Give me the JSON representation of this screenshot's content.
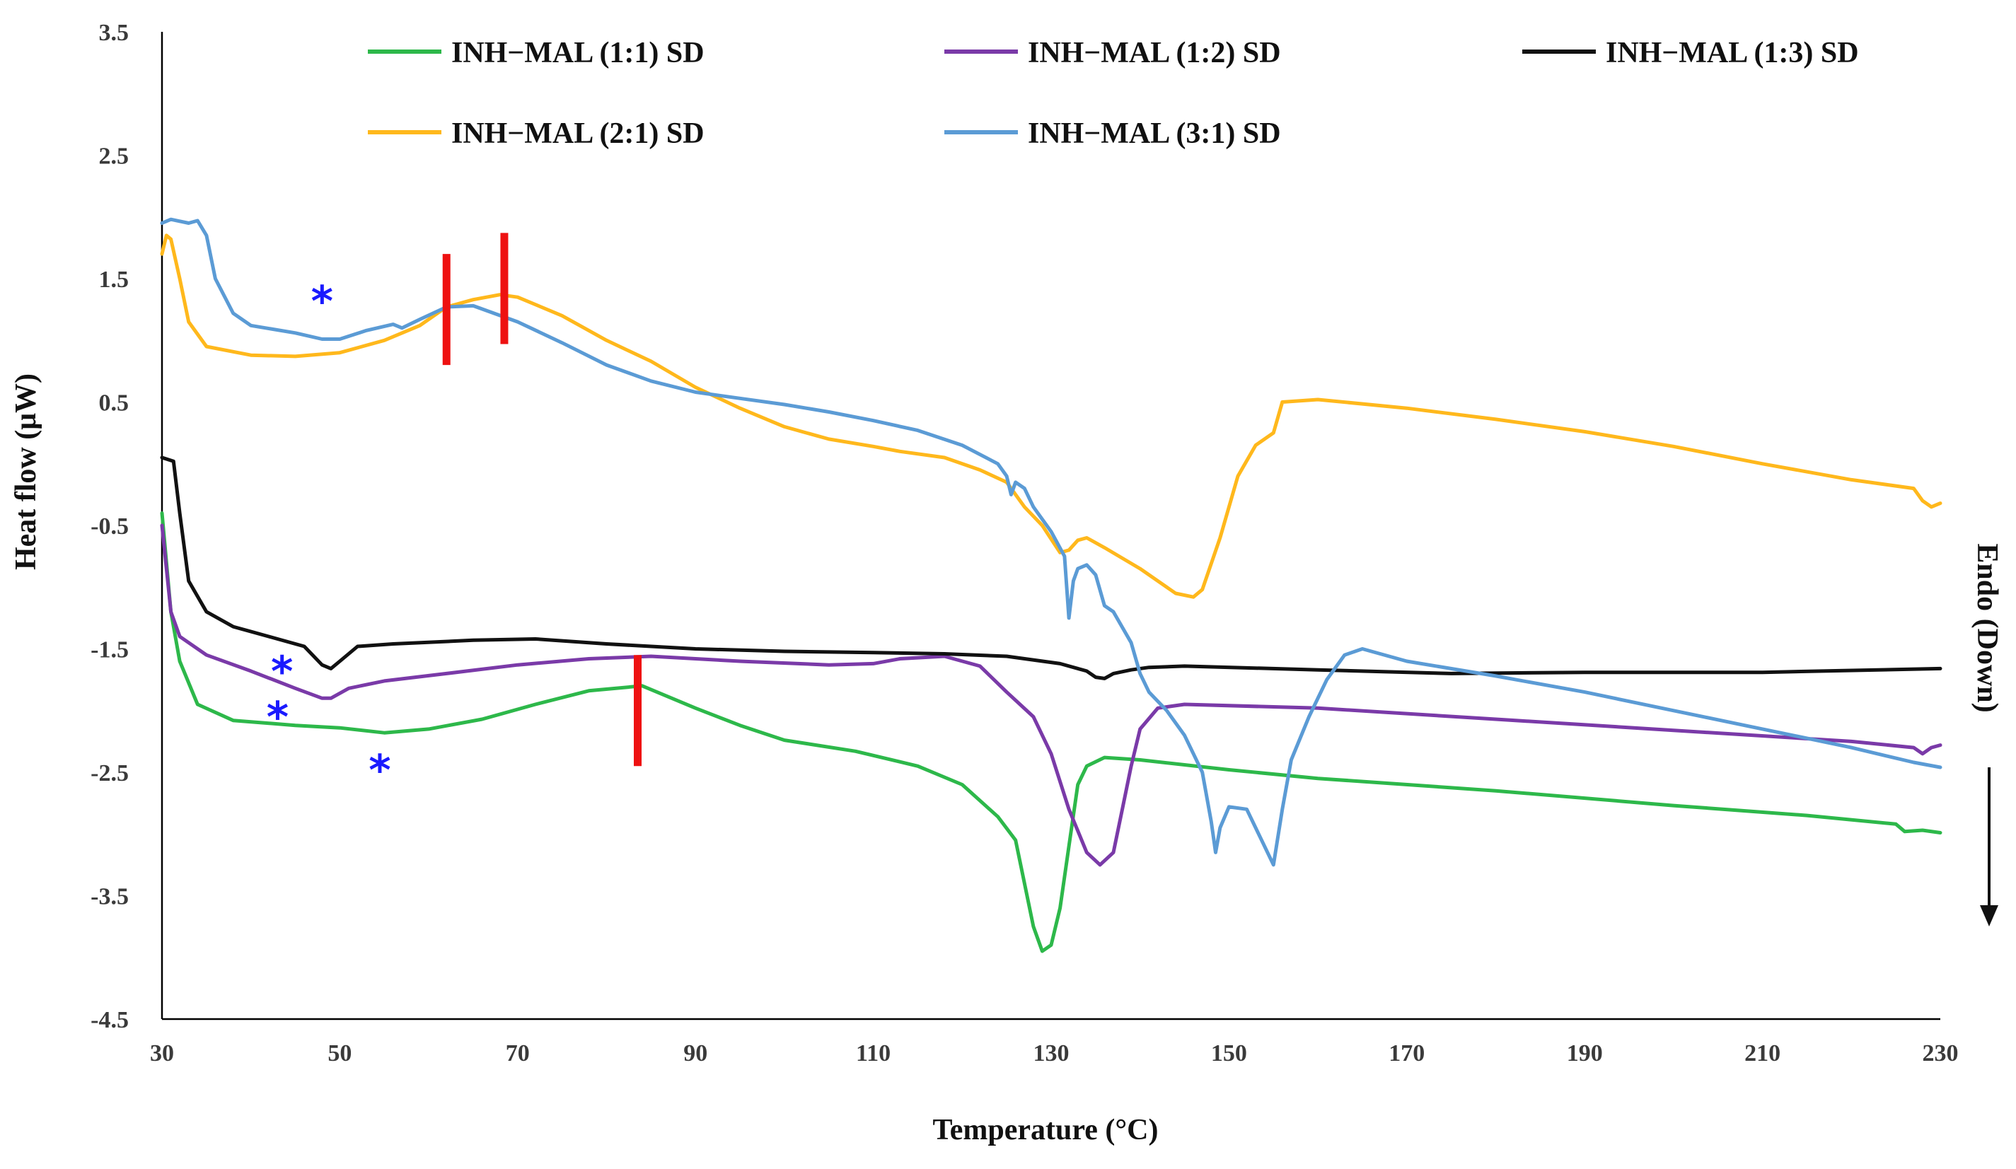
{
  "chart_data": {
    "type": "line",
    "title": "",
    "xlabel": "Temperature (°C)",
    "ylabel": "Heat flow (μW)",
    "right_label": "Endo (Down)",
    "xlim": [
      30,
      230
    ],
    "ylim": [
      -4.5,
      3.5
    ],
    "xticks": [
      30,
      50,
      70,
      90,
      110,
      130,
      150,
      170,
      190,
      210,
      230
    ],
    "yticks": [
      3.5,
      2.5,
      1.5,
      0.5,
      -0.5,
      -1.5,
      -2.5,
      -3.5,
      -4.5
    ],
    "ytick_labels": [
      "3.5",
      "2.5",
      "1.5",
      "0.5",
      "-0.5",
      "-1.5",
      "-2.5",
      "-3.5",
      "-4.5"
    ],
    "legend_position": "top",
    "series": [
      {
        "name": "INH−MAL (1:1) SD",
        "color": "#2db84a",
        "points": [
          [
            30,
            -0.4
          ],
          [
            31,
            -1.2
          ],
          [
            32,
            -1.6
          ],
          [
            34,
            -1.95
          ],
          [
            38,
            -2.08
          ],
          [
            45,
            -2.12
          ],
          [
            50,
            -2.14
          ],
          [
            55,
            -2.18
          ],
          [
            60,
            -2.15
          ],
          [
            66,
            -2.07
          ],
          [
            72,
            -1.95
          ],
          [
            78,
            -1.84
          ],
          [
            84,
            -1.8
          ],
          [
            90,
            -1.98
          ],
          [
            95,
            -2.12
          ],
          [
            100,
            -2.24
          ],
          [
            108,
            -2.33
          ],
          [
            115,
            -2.45
          ],
          [
            120,
            -2.6
          ],
          [
            124,
            -2.86
          ],
          [
            126,
            -3.05
          ],
          [
            127,
            -3.4
          ],
          [
            128,
            -3.75
          ],
          [
            129,
            -3.95
          ],
          [
            130,
            -3.9
          ],
          [
            131,
            -3.6
          ],
          [
            132,
            -3.1
          ],
          [
            133,
            -2.6
          ],
          [
            134,
            -2.45
          ],
          [
            136,
            -2.38
          ],
          [
            140,
            -2.4
          ],
          [
            150,
            -2.48
          ],
          [
            160,
            -2.55
          ],
          [
            180,
            -2.65
          ],
          [
            200,
            -2.77
          ],
          [
            215,
            -2.85
          ],
          [
            225,
            -2.92
          ],
          [
            226,
            -2.98
          ],
          [
            228,
            -2.97
          ],
          [
            230,
            -2.99
          ]
        ]
      },
      {
        "name": "INH−MAL (1:2) SD",
        "color": "#7a3aa8",
        "points": [
          [
            30,
            -0.5
          ],
          [
            31,
            -1.2
          ],
          [
            32,
            -1.4
          ],
          [
            35,
            -1.55
          ],
          [
            40,
            -1.68
          ],
          [
            45,
            -1.82
          ],
          [
            48,
            -1.9
          ],
          [
            49,
            -1.9
          ],
          [
            51,
            -1.82
          ],
          [
            55,
            -1.76
          ],
          [
            62,
            -1.7
          ],
          [
            70,
            -1.63
          ],
          [
            78,
            -1.58
          ],
          [
            85,
            -1.56
          ],
          [
            95,
            -1.6
          ],
          [
            105,
            -1.63
          ],
          [
            110,
            -1.62
          ],
          [
            113,
            -1.58
          ],
          [
            118,
            -1.56
          ],
          [
            122,
            -1.64
          ],
          [
            125,
            -1.85
          ],
          [
            128,
            -2.05
          ],
          [
            130,
            -2.35
          ],
          [
            132,
            -2.8
          ],
          [
            134,
            -3.15
          ],
          [
            135.5,
            -3.25
          ],
          [
            137,
            -3.15
          ],
          [
            138,
            -2.8
          ],
          [
            139,
            -2.45
          ],
          [
            140,
            -2.15
          ],
          [
            142,
            -1.98
          ],
          [
            145,
            -1.95
          ],
          [
            160,
            -1.98
          ],
          [
            180,
            -2.07
          ],
          [
            200,
            -2.16
          ],
          [
            220,
            -2.25
          ],
          [
            227,
            -2.3
          ],
          [
            228,
            -2.35
          ],
          [
            229,
            -2.3
          ],
          [
            230,
            -2.28
          ]
        ]
      },
      {
        "name": "INH−MAL (1:3) SD",
        "color": "#111111",
        "points": [
          [
            30,
            0.05
          ],
          [
            31.3,
            0.02
          ],
          [
            32,
            -0.4
          ],
          [
            33,
            -0.95
          ],
          [
            35,
            -1.2
          ],
          [
            38,
            -1.32
          ],
          [
            42,
            -1.4
          ],
          [
            46,
            -1.48
          ],
          [
            48,
            -1.63
          ],
          [
            49,
            -1.66
          ],
          [
            50,
            -1.6
          ],
          [
            52,
            -1.48
          ],
          [
            56,
            -1.46
          ],
          [
            65,
            -1.43
          ],
          [
            72,
            -1.42
          ],
          [
            80,
            -1.46
          ],
          [
            90,
            -1.5
          ],
          [
            100,
            -1.52
          ],
          [
            110,
            -1.53
          ],
          [
            118,
            -1.54
          ],
          [
            125,
            -1.56
          ],
          [
            131,
            -1.62
          ],
          [
            134,
            -1.68
          ],
          [
            135,
            -1.73
          ],
          [
            136,
            -1.74
          ],
          [
            137,
            -1.7
          ],
          [
            139,
            -1.67
          ],
          [
            141,
            -1.65
          ],
          [
            145,
            -1.64
          ],
          [
            160,
            -1.67
          ],
          [
            175,
            -1.7
          ],
          [
            190,
            -1.69
          ],
          [
            210,
            -1.69
          ],
          [
            230,
            -1.66
          ]
        ]
      },
      {
        "name": "INH−MAL (2:1) SD",
        "color": "#ffb81c",
        "points": [
          [
            30,
            1.7
          ],
          [
            30.5,
            1.85
          ],
          [
            31,
            1.82
          ],
          [
            32,
            1.5
          ],
          [
            33,
            1.15
          ],
          [
            35,
            0.95
          ],
          [
            40,
            0.88
          ],
          [
            45,
            0.87
          ],
          [
            50,
            0.9
          ],
          [
            55,
            1.0
          ],
          [
            59,
            1.12
          ],
          [
            62,
            1.27
          ],
          [
            65,
            1.33
          ],
          [
            68,
            1.37
          ],
          [
            70,
            1.35
          ],
          [
            75,
            1.2
          ],
          [
            80,
            1.0
          ],
          [
            85,
            0.83
          ],
          [
            90,
            0.62
          ],
          [
            95,
            0.45
          ],
          [
            100,
            0.3
          ],
          [
            105,
            0.2
          ],
          [
            110,
            0.14
          ],
          [
            113,
            0.1
          ],
          [
            118,
            0.05
          ],
          [
            122,
            -0.05
          ],
          [
            125,
            -0.15
          ],
          [
            127,
            -0.35
          ],
          [
            129,
            -0.5
          ],
          [
            131,
            -0.72
          ],
          [
            132,
            -0.7
          ],
          [
            133,
            -0.62
          ],
          [
            134,
            -0.6
          ],
          [
            136,
            -0.68
          ],
          [
            140,
            -0.85
          ],
          [
            144,
            -1.05
          ],
          [
            146,
            -1.08
          ],
          [
            147,
            -1.02
          ],
          [
            149,
            -0.6
          ],
          [
            151,
            -0.1
          ],
          [
            153,
            0.15
          ],
          [
            155,
            0.25
          ],
          [
            156,
            0.5
          ],
          [
            160,
            0.52
          ],
          [
            170,
            0.45
          ],
          [
            180,
            0.36
          ],
          [
            190,
            0.26
          ],
          [
            200,
            0.14
          ],
          [
            210,
            0.0
          ],
          [
            220,
            -0.13
          ],
          [
            227,
            -0.2
          ],
          [
            228,
            -0.3
          ],
          [
            229,
            -0.35
          ],
          [
            230,
            -0.32
          ]
        ]
      },
      {
        "name": "INH−MAL (3:1) SD",
        "color": "#5b9bd5",
        "points": [
          [
            30,
            1.95
          ],
          [
            31,
            1.98
          ],
          [
            33,
            1.95
          ],
          [
            34,
            1.97
          ],
          [
            35,
            1.85
          ],
          [
            36,
            1.5
          ],
          [
            38,
            1.22
          ],
          [
            40,
            1.12
          ],
          [
            45,
            1.06
          ],
          [
            48,
            1.01
          ],
          [
            50,
            1.01
          ],
          [
            53,
            1.08
          ],
          [
            56,
            1.13
          ],
          [
            57,
            1.1
          ],
          [
            59,
            1.17
          ],
          [
            62,
            1.27
          ],
          [
            65,
            1.28
          ],
          [
            70,
            1.15
          ],
          [
            75,
            0.98
          ],
          [
            80,
            0.8
          ],
          [
            85,
            0.67
          ],
          [
            90,
            0.58
          ],
          [
            95,
            0.53
          ],
          [
            100,
            0.48
          ],
          [
            105,
            0.42
          ],
          [
            110,
            0.35
          ],
          [
            115,
            0.27
          ],
          [
            120,
            0.15
          ],
          [
            124,
            0.0
          ],
          [
            125,
            -0.1
          ],
          [
            125.5,
            -0.25
          ],
          [
            126,
            -0.15
          ],
          [
            127,
            -0.2
          ],
          [
            128,
            -0.35
          ],
          [
            130,
            -0.55
          ],
          [
            131.5,
            -0.75
          ],
          [
            132,
            -1.25
          ],
          [
            132.5,
            -0.95
          ],
          [
            133,
            -0.85
          ],
          [
            134,
            -0.82
          ],
          [
            135,
            -0.9
          ],
          [
            136,
            -1.15
          ],
          [
            137,
            -1.2
          ],
          [
            139,
            -1.45
          ],
          [
            140,
            -1.7
          ],
          [
            141,
            -1.85
          ],
          [
            143,
            -2.0
          ],
          [
            145,
            -2.2
          ],
          [
            146,
            -2.35
          ],
          [
            147,
            -2.5
          ],
          [
            148,
            -2.9
          ],
          [
            148.5,
            -3.15
          ],
          [
            149,
            -2.95
          ],
          [
            150,
            -2.78
          ],
          [
            152,
            -2.8
          ],
          [
            153,
            -2.95
          ],
          [
            154,
            -3.1
          ],
          [
            155,
            -3.25
          ],
          [
            156,
            -2.8
          ],
          [
            157,
            -2.4
          ],
          [
            159,
            -2.05
          ],
          [
            161,
            -1.75
          ],
          [
            163,
            -1.55
          ],
          [
            165,
            -1.5
          ],
          [
            170,
            -1.6
          ],
          [
            180,
            -1.72
          ],
          [
            190,
            -1.85
          ],
          [
            200,
            -2.0
          ],
          [
            210,
            -2.15
          ],
          [
            220,
            -2.3
          ],
          [
            227,
            -2.42
          ],
          [
            230,
            -2.46
          ]
        ]
      }
    ],
    "annotations": {
      "stars": [
        {
          "label": "*",
          "x": 48,
          "y": 1.4
        },
        {
          "label": "*",
          "x": 43.5,
          "y": -1.6
        },
        {
          "label": "*",
          "x": 43,
          "y": -1.97
        },
        {
          "label": "*",
          "x": 54.5,
          "y": -2.4
        }
      ],
      "red_markers": [
        {
          "x": 62,
          "y_from": 0.8,
          "y_to": 1.7
        },
        {
          "x": 68.5,
          "y_from": 0.97,
          "y_to": 1.87
        },
        {
          "x": 83.5,
          "y_from": -2.45,
          "y_to": -1.55
        }
      ]
    }
  }
}
